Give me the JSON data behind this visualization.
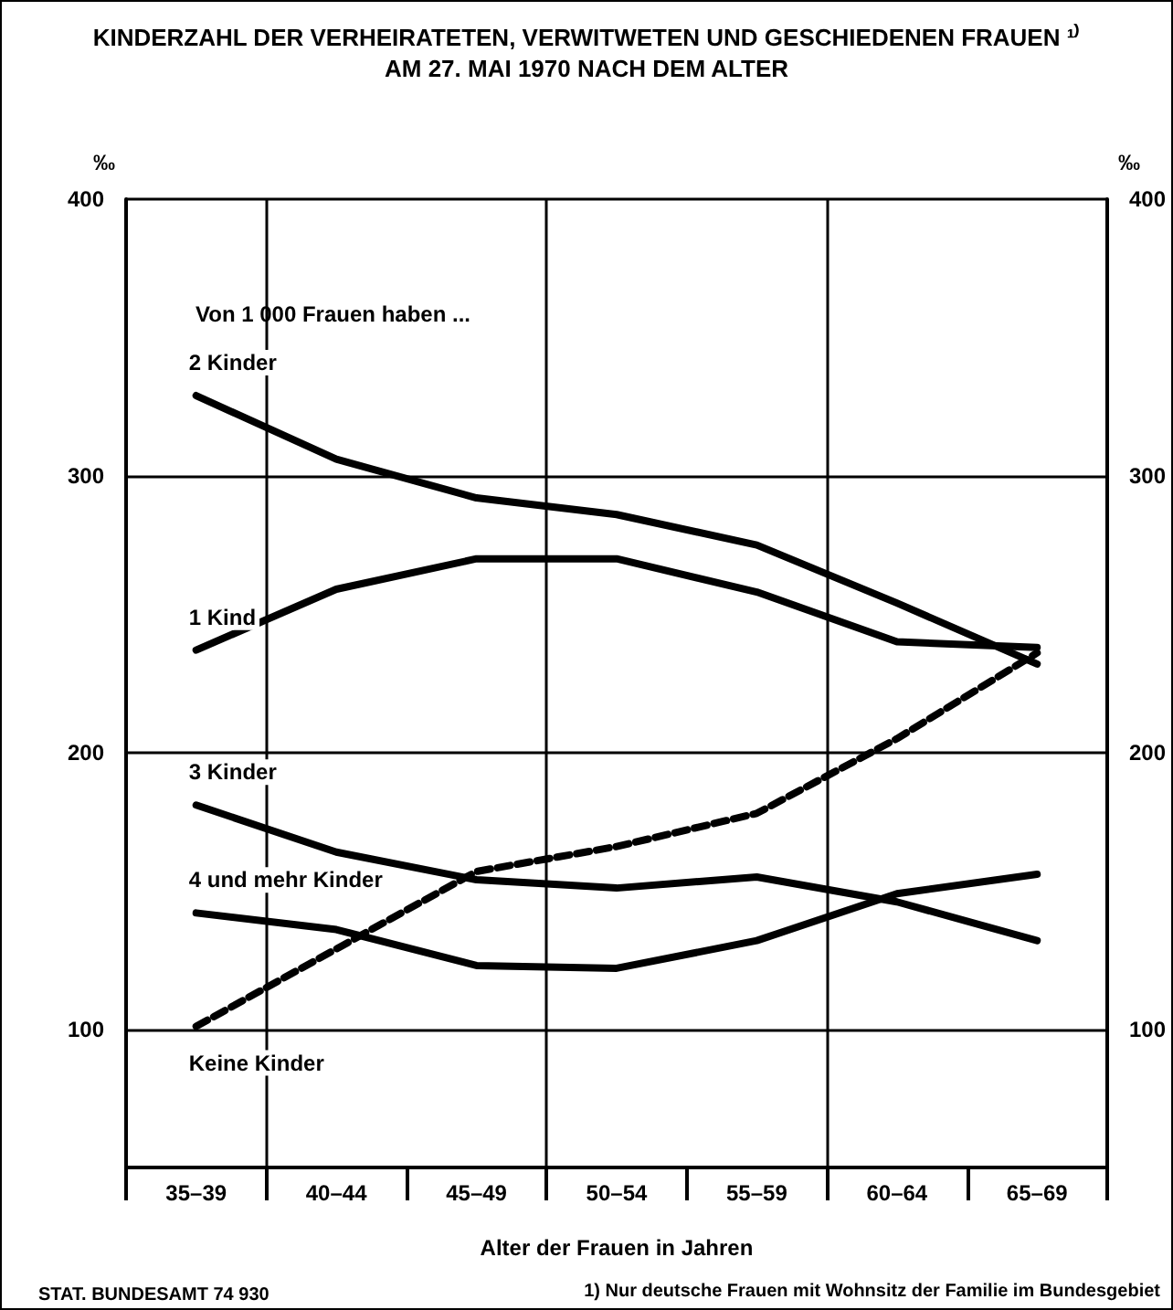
{
  "chart_data": {
    "type": "line",
    "title": "KINDERZAHL DER VERHEIRATETEN, VERWITWETEN UND GESCHIEDENEN FRAUEN ¹⁾",
    "subtitle": "AM 27. MAI 1970 NACH DEM ALTER",
    "xlabel": "Alter der Frauen in Jahren",
    "ylabel": "‰",
    "y2label": "‰",
    "categories": [
      "35–39",
      "40–44",
      "45–49",
      "50–54",
      "55–59",
      "60–64",
      "65–69"
    ],
    "series": [
      {
        "name": "2 Kinder",
        "color": "#000000",
        "values": [
          329,
          306,
          292,
          286,
          275,
          254,
          232
        ]
      },
      {
        "name": "1 Kind",
        "color": "#000000",
        "values": [
          237,
          259,
          270,
          270,
          258,
          240,
          238
        ]
      },
      {
        "name": "3 Kinder",
        "color": "#000000",
        "values": [
          181,
          164,
          154,
          151,
          155,
          146,
          132
        ]
      },
      {
        "name": "4 und mehr Kinder",
        "color": "#000000",
        "values": [
          142,
          136,
          123,
          122,
          132,
          149,
          156
        ]
      },
      {
        "name": "Keine Kinder",
        "color": "#000000",
        "values": [
          101,
          129,
          157,
          166,
          178,
          205,
          236
        ],
        "line_style": "dashed"
      }
    ],
    "ylim": [
      50,
      400
    ],
    "yticks": [
      100,
      200,
      300,
      400
    ],
    "y2lim": [
      50,
      400
    ],
    "y2ticks": [
      100,
      200,
      300,
      400
    ],
    "grid": true,
    "marker": "none",
    "line_style": "solid",
    "annotations": [
      "Von 1 000 Frauen haben ...",
      "STAT. BUNDESAMT 74 930",
      "1) Nur deutsche Frauen mit Wohnsitz der Familie im Bundesgebiet"
    ]
  }
}
